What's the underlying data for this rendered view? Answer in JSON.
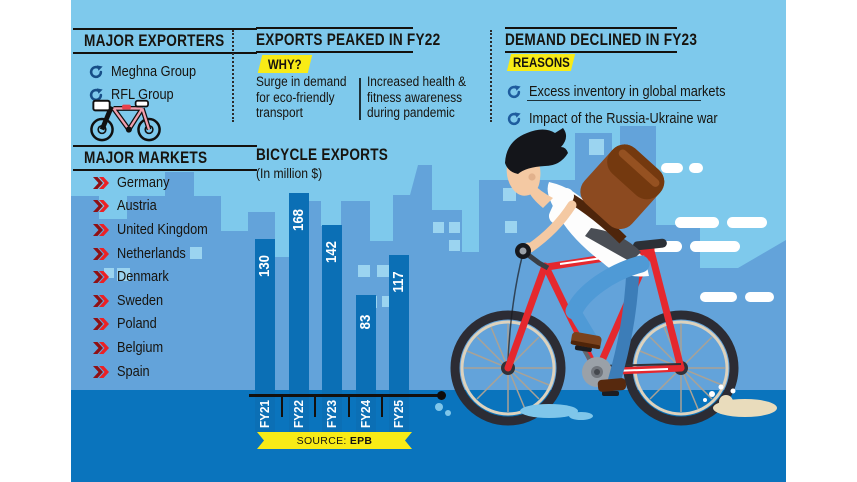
{
  "palette": {
    "background": "#7ec9ec",
    "skyline": "#63a3da",
    "window": "#9bd4f0",
    "ground": "#0a74bd",
    "bar": "#0b6fb5",
    "accent_yellow": "#f8eb16",
    "accent_red": "#ed1c24",
    "icon_navy": "#174e87",
    "text": "#17140f"
  },
  "exporters": {
    "title": "MAJOR EXPORTERS",
    "items": [
      "Meghna Group",
      "RFL Group"
    ]
  },
  "markets": {
    "title": "MAJOR MARKETS",
    "items": [
      "Germany",
      "Austria",
      "United Kingdom",
      "Netherlands",
      "Denmark",
      "Sweden",
      "Poland",
      "Belgium",
      "Spain"
    ]
  },
  "peak": {
    "title": "EXPORTS PEAKED IN FY22",
    "tag": "WHY?",
    "reasons": [
      "Surge in demand for eco-friendly transport",
      "Increased health & fitness awareness during pandemic"
    ]
  },
  "decline": {
    "title": "DEMAND DECLINED IN FY23",
    "tag": "REASONS",
    "reasons": [
      "Excess inventory in global markets",
      "Impact of the Russia-Ukraine war"
    ]
  },
  "chart_data": {
    "type": "bar",
    "title": "BICYCLE EXPORTS",
    "subtitle": "(In million $)",
    "categories": [
      "FY21",
      "FY22",
      "FY23",
      "FY24",
      "FY25"
    ],
    "values": [
      130,
      168,
      142,
      83,
      117
    ],
    "unit": "million USD",
    "ylim": [
      0,
      180
    ],
    "grid": false,
    "bar_color": "#0b6fb5",
    "value_label_color": "#ffffff",
    "source_label": "SOURCE:",
    "source_value": "EPB"
  }
}
